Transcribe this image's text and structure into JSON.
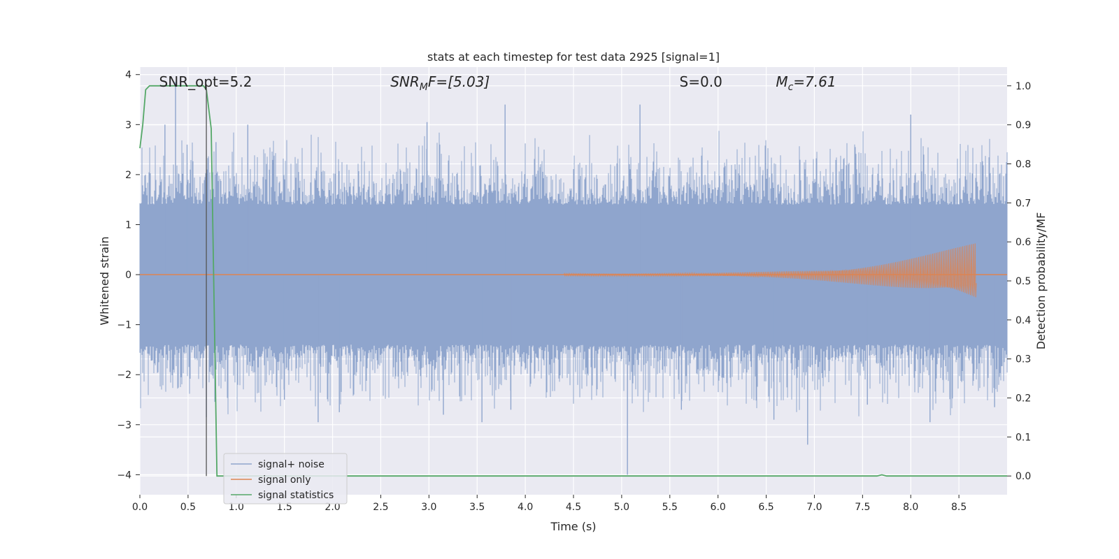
{
  "chart_data": {
    "type": "line",
    "title": "stats at each timestep for test data 2925 [signal=1]",
    "xlabel": "Time (s)",
    "ylabel": "Whitened strain",
    "y2label": "Detection probability/MF",
    "xlim": [
      0.0,
      9.0
    ],
    "ylim": [
      -4.4,
      4.15
    ],
    "y2lim": [
      -0.048,
      1.048
    ],
    "xticks": [
      "0.0",
      "0.5",
      "1.0",
      "1.5",
      "2.0",
      "2.5",
      "3.0",
      "3.5",
      "4.0",
      "4.5",
      "5.0",
      "5.5",
      "6.0",
      "6.5",
      "7.0",
      "7.5",
      "8.0",
      "8.5"
    ],
    "xtick_values": [
      0,
      0.5,
      1,
      1.5,
      2,
      2.5,
      3,
      3.5,
      4,
      4.5,
      5,
      5.5,
      6,
      6.5,
      7,
      7.5,
      8,
      8.5
    ],
    "yticks": [
      "4",
      "3",
      "2",
      "1",
      "0",
      "−1",
      "−2",
      "−3",
      "−4"
    ],
    "ytick_values": [
      4,
      3,
      2,
      1,
      0,
      -1,
      -2,
      -3,
      -4
    ],
    "y2ticks": [
      "1.0",
      "0.9",
      "0.8",
      "0.7",
      "0.6",
      "0.5",
      "0.4",
      "0.3",
      "0.2",
      "0.1",
      "0.0"
    ],
    "y2tick_values": [
      1.0,
      0.9,
      0.8,
      0.7,
      0.6,
      0.5,
      0.4,
      0.3,
      0.2,
      0.1,
      0.0
    ],
    "grid": true,
    "legend_position": "lower-left",
    "colors": {
      "background": "#eaeaf2",
      "grid": "#ffffff",
      "noise": "#8fa5cd",
      "signal": "#dd8452",
      "stats": "#55a868",
      "marker": "#555555"
    },
    "series": [
      {
        "name": "signal+ noise",
        "kind": "noise-envelope",
        "typical_amplitude": 1.4,
        "spikes": [
          {
            "x": 0.37,
            "y": 3.85
          },
          {
            "x": 0.26,
            "y": 3.0
          },
          {
            "x": 0.49,
            "y": 2.6
          },
          {
            "x": 0.69,
            "y": -2.85
          },
          {
            "x": 0.79,
            "y": 2.65
          },
          {
            "x": 1.12,
            "y": 3.0
          },
          {
            "x": 1.5,
            "y": -2.5
          },
          {
            "x": 1.85,
            "y": -2.95
          },
          {
            "x": 2.07,
            "y": -2.75
          },
          {
            "x": 2.98,
            "y": 3.05
          },
          {
            "x": 3.15,
            "y": -2.8
          },
          {
            "x": 3.55,
            "y": -2.95
          },
          {
            "x": 3.79,
            "y": 3.4
          },
          {
            "x": 3.85,
            "y": -2.7
          },
          {
            "x": 5.06,
            "y": -4.0
          },
          {
            "x": 5.19,
            "y": 3.4
          },
          {
            "x": 5.62,
            "y": -2.7
          },
          {
            "x": 6.58,
            "y": -2.9
          },
          {
            "x": 6.93,
            "y": -3.4
          },
          {
            "x": 7.55,
            "y": -2.6
          },
          {
            "x": 8.0,
            "y": 3.2
          },
          {
            "x": 8.2,
            "y": -2.95
          },
          {
            "x": 8.87,
            "y": -2.65
          }
        ]
      },
      {
        "name": "signal only",
        "kind": "chirp",
        "start_x": 4.4,
        "end_x": 8.68,
        "peak_amplitude": 0.65
      },
      {
        "name": "signal statistics",
        "axis": "right",
        "points": [
          [
            0.0,
            0.84
          ],
          [
            0.03,
            0.9
          ],
          [
            0.06,
            0.99
          ],
          [
            0.1,
            1.0
          ],
          [
            0.2,
            1.0
          ],
          [
            0.35,
            1.0
          ],
          [
            0.55,
            1.0
          ],
          [
            0.66,
            1.0
          ],
          [
            0.69,
            0.99
          ],
          [
            0.74,
            0.89
          ],
          [
            0.8,
            0.0
          ],
          [
            1.5,
            0.0
          ],
          [
            3.0,
            0.0
          ],
          [
            5.0,
            0.0
          ],
          [
            7.65,
            0.0
          ],
          [
            7.7,
            0.003
          ],
          [
            7.75,
            0.0
          ],
          [
            9.0,
            0.0
          ]
        ]
      }
    ],
    "vertical_marker_x": 0.69,
    "annotations": [
      {
        "label": "SNR_opt=5.2",
        "x": 0.2
      },
      {
        "label": "SNR<tspan font-size='14' dy='5'>M</tspan><tspan dy='-5'>F=[5.03]</tspan>",
        "x": 2.6
      },
      {
        "label": "S=0.0",
        "x": 5.6
      },
      {
        "label": "M<tspan font-size='14' dy='5'>c</tspan><tspan dy='-5'>=7.61</tspan>",
        "x": 6.6
      }
    ]
  }
}
